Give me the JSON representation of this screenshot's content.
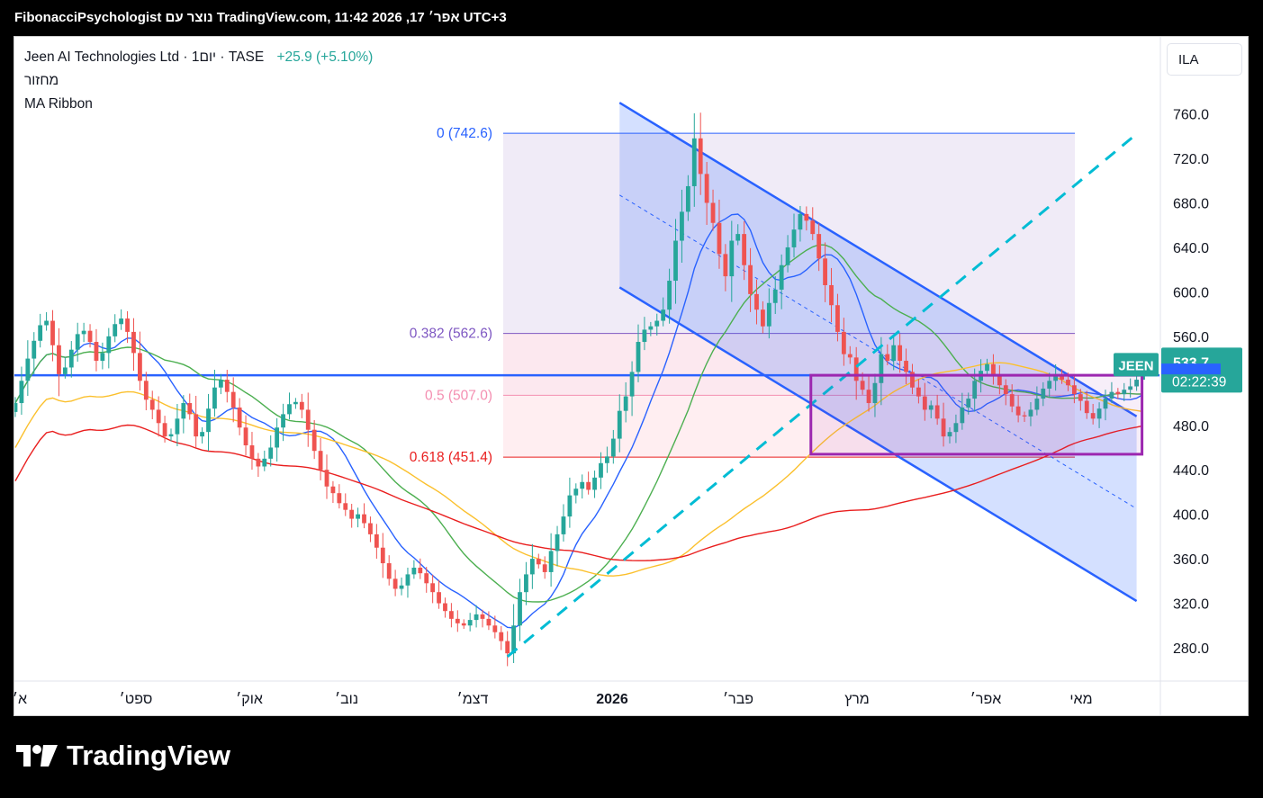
{
  "header": {
    "snapshot_line": "FibonacciPsychologist נוצר עם TradingView.com, 11:42 2026 ,17 אפר׳ UTC+3"
  },
  "legend": {
    "symbol_line": "Jeen AI Technologies Ltd · 1יום · TASE",
    "change": "+25.9 (+5.10%)",
    "indicator_1": "מחזור",
    "indicator_2": "MA Ribbon"
  },
  "currency_button": "ILA",
  "price_badge": {
    "ticker": "JEEN",
    "price": "533.7",
    "countdown": "02:22:39"
  },
  "brand": {
    "name": "TradingView"
  },
  "colors": {
    "up": "#26a69a",
    "down": "#ef5350",
    "ma_blue": "#2962ff",
    "ma_green": "#4caf50",
    "ma_yellow": "#fbc02d",
    "ma_red": "#e91e1e",
    "channel": "#2962ff",
    "trendline": "#00bcd4",
    "range_box": "#9c27b0"
  },
  "chart_data": {
    "type": "candlestick",
    "yticks": [
      280.0,
      320.0,
      360.0,
      400.0,
      440.0,
      480.0,
      520.0,
      560.0,
      600.0,
      640.0,
      680.0,
      720.0,
      760.0
    ],
    "ylim": [
      258,
      784
    ],
    "x_tick_labels": [
      "א׳",
      "ספט׳",
      "אוק׳",
      "נוב׳",
      "דצמ׳",
      "2026",
      "פבר׳",
      "מרץ",
      "אפר׳",
      "מאי"
    ],
    "fib_levels": [
      {
        "label": "0 (742.6)",
        "value": 742.6,
        "color": "#2962ff"
      },
      {
        "label": "0.382 (562.6)",
        "value": 562.6,
        "color": "#7e57c2"
      },
      {
        "label": "0.5 (507.0)",
        "value": 507.0,
        "color": "#f48fb1"
      },
      {
        "label": "0.618 (451.4)",
        "value": 451.4,
        "color": "#e91e1e"
      }
    ],
    "horizontal_level": 525.0,
    "last_price": 533.7,
    "candle_closes": [
      500,
      520,
      540,
      556,
      570,
      574,
      552,
      526,
      532,
      548,
      562,
      565,
      555,
      538,
      545,
      560,
      571,
      576,
      564,
      545,
      520,
      503,
      494,
      482,
      470,
      472,
      486,
      500,
      490,
      470,
      474,
      495,
      514,
      521,
      510,
      496,
      478,
      462,
      450,
      443,
      450,
      460,
      478,
      490,
      499,
      501,
      494,
      476,
      457,
      440,
      425,
      419,
      410,
      404,
      396,
      400,
      392,
      382,
      370,
      356,
      342,
      333,
      336,
      346,
      352,
      347,
      338,
      330,
      320,
      313,
      306,
      302,
      300,
      305,
      310,
      306,
      300,
      294,
      286,
      275,
      300,
      330,
      346,
      360,
      355,
      348,
      367,
      382,
      398,
      417,
      423,
      429,
      422,
      433,
      446,
      452,
      468,
      493,
      506,
      528,
      555,
      566,
      569,
      574,
      584,
      610,
      646,
      672,
      695,
      738,
      706,
      680,
      662,
      634,
      614,
      646,
      652,
      624,
      598,
      584,
      569,
      590,
      602,
      624,
      640,
      656,
      670,
      664,
      652,
      630,
      606,
      588,
      564,
      544,
      541,
      520,
      512,
      500,
      518,
      544,
      538,
      552,
      538,
      528,
      514,
      506,
      494,
      498,
      486,
      470,
      474,
      482,
      496,
      504,
      520,
      529,
      535,
      524,
      516,
      508,
      497,
      489,
      488,
      494,
      504,
      513,
      520,
      526,
      521,
      516,
      508,
      502,
      491,
      486,
      495,
      504,
      510,
      508,
      512,
      515,
      521,
      534
    ],
    "ma_values": [
      562,
      556,
      540,
      510,
      480,
      476,
      495,
      505
    ],
    "trendline": {
      "from": {
        "candle": 79,
        "value": 272
      },
      "to": {
        "candle": 180,
        "value": 742
      }
    },
    "range_box": {
      "from_candle": 128,
      "to_candle": 180,
      "top": 525,
      "bottom": 454
    },
    "channel": {
      "upper": [
        [
          97,
          770
        ],
        [
          180,
          488
        ]
      ],
      "lower": [
        [
          97,
          604
        ],
        [
          180,
          322
        ]
      ]
    }
  }
}
